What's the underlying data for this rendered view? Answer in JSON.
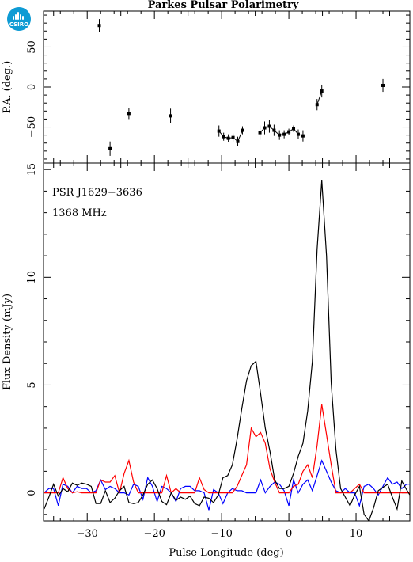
{
  "logo": {
    "text": "CSIRO"
  },
  "chart_data": [
    {
      "type": "scatter",
      "title": "Parkes Pulsar Polarimetry",
      "xlabel": "",
      "ylabel": "P.A. (deg.)",
      "xlim": [
        -36.5,
        18.0
      ],
      "ylim": [
        -95,
        95
      ],
      "yticks": [
        -50,
        0,
        50
      ],
      "points": [
        {
          "x": -28.2,
          "y": 77,
          "err": 8
        },
        {
          "x": -26.6,
          "y": -77,
          "err": 9
        },
        {
          "x": -23.8,
          "y": -33,
          "err": 7
        },
        {
          "x": -17.6,
          "y": -36,
          "err": 9
        },
        {
          "x": -10.4,
          "y": -55,
          "err": 7
        },
        {
          "x": -9.7,
          "y": -62,
          "err": 5
        },
        {
          "x": -9.0,
          "y": -64,
          "err": 5
        },
        {
          "x": -8.3,
          "y": -63,
          "err": 5
        },
        {
          "x": -7.6,
          "y": -68,
          "err": 6
        },
        {
          "x": -6.9,
          "y": -54,
          "err": 5
        },
        {
          "x": -4.3,
          "y": -57,
          "err": 9
        },
        {
          "x": -3.6,
          "y": -51,
          "err": 8
        },
        {
          "x": -2.9,
          "y": -49,
          "err": 8
        },
        {
          "x": -2.2,
          "y": -54,
          "err": 7
        },
        {
          "x": -1.4,
          "y": -60,
          "err": 6
        },
        {
          "x": -0.7,
          "y": -59,
          "err": 5
        },
        {
          "x": 0.0,
          "y": -56,
          "err": 4
        },
        {
          "x": 0.7,
          "y": -52,
          "err": 4
        },
        {
          "x": 1.4,
          "y": -59,
          "err": 6
        },
        {
          "x": 2.1,
          "y": -61,
          "err": 7
        },
        {
          "x": 4.2,
          "y": -22,
          "err": 7
        },
        {
          "x": 4.9,
          "y": -5,
          "err": 8
        },
        {
          "x": 14.0,
          "y": 2,
          "err": 8
        }
      ],
      "connected_groups": [
        [
          4,
          9
        ],
        [
          10,
          19
        ],
        [
          20,
          21
        ]
      ]
    },
    {
      "type": "line",
      "xlabel": "Pulse Longitude (deg)",
      "ylabel": "Flux Density (mJy)",
      "xlim": [
        -36.5,
        18.0
      ],
      "ylim": [
        -1.3,
        15.3
      ],
      "xticks": [
        -30,
        -20,
        -10,
        0,
        10
      ],
      "yticks": [
        0,
        5,
        10,
        15
      ],
      "annotations": [
        "PSR J1629−3636",
        "1368 MHz"
      ],
      "x_start": -36.4,
      "x_step": 0.7,
      "series": [
        {
          "color": "#000000",
          "values": [
            -0.75,
            -0.2,
            0.4,
            -0.15,
            0.2,
            0.05,
            0.45,
            0.35,
            0.45,
            0.4,
            0.3,
            -0.5,
            -0.5,
            0.1,
            -0.45,
            -0.25,
            0.1,
            0.3,
            -0.45,
            -0.5,
            -0.45,
            -0.1,
            0.4,
            0.6,
            0.2,
            -0.4,
            -0.55,
            0.0,
            -0.35,
            -0.2,
            -0.3,
            -0.15,
            -0.5,
            -0.6,
            -0.2,
            -0.25,
            -0.45,
            -0.1,
            0.7,
            0.8,
            1.3,
            2.5,
            3.9,
            5.2,
            5.9,
            6.1,
            4.6,
            3.0,
            1.9,
            0.6,
            0.2,
            0.2,
            0.3,
            0.9,
            1.7,
            2.3,
            3.8,
            6.1,
            11.3,
            14.5,
            11.0,
            5.1,
            2.0,
            0.2,
            -0.2,
            -0.6,
            -0.1,
            0.3,
            -1.0,
            -1.3,
            -0.7,
            0.1,
            0.25,
            0.4,
            -0.2,
            -0.75,
            0.55,
            0.15,
            -0.2,
            -0.15,
            0.0,
            -0.5
          ]
        },
        {
          "color": "#ff0000",
          "values": [
            0.0,
            0.0,
            0.0,
            0.0,
            0.7,
            0.2,
            0.0,
            0.05,
            0.0,
            0.0,
            0.0,
            0.0,
            0.6,
            0.5,
            0.5,
            0.8,
            0.0,
            0.9,
            1.5,
            0.5,
            0.0,
            0.0,
            0.0,
            0.0,
            0.0,
            0.0,
            0.8,
            0.0,
            0.2,
            0.0,
            0.0,
            0.0,
            0.0,
            0.7,
            0.15,
            0.0,
            0.0,
            0.0,
            0.0,
            0.0,
            0.0,
            0.3,
            0.8,
            1.3,
            3.0,
            2.6,
            2.8,
            2.3,
            1.1,
            0.5,
            0.0,
            0.0,
            0.0,
            0.3,
            0.4,
            1.0,
            1.3,
            0.7,
            2.2,
            4.1,
            2.7,
            1.3,
            0.0,
            0.0,
            0.0,
            0.0,
            0.2,
            0.4,
            0.0,
            0.0,
            0.0,
            0.0,
            0.0,
            0.0,
            0.0,
            0.0,
            0.0,
            0.0,
            0.0,
            0.0,
            0.0,
            0.0
          ]
        },
        {
          "color": "#0000ff",
          "values": [
            0.0,
            0.2,
            0.2,
            -0.6,
            0.4,
            0.3,
            0.0,
            0.3,
            0.2,
            0.2,
            0.0,
            0.1,
            0.6,
            0.15,
            0.3,
            0.2,
            0.0,
            0.0,
            -0.1,
            0.4,
            0.3,
            -0.3,
            0.7,
            0.3,
            -0.4,
            0.3,
            0.2,
            0.0,
            -0.4,
            0.2,
            0.3,
            0.3,
            0.1,
            0.1,
            0.0,
            -0.8,
            0.15,
            0.0,
            -0.5,
            0.0,
            0.2,
            0.1,
            0.1,
            0.0,
            0.0,
            0.0,
            0.6,
            0.0,
            0.3,
            0.5,
            0.4,
            0.1,
            -0.6,
            0.6,
            0.0,
            0.4,
            0.6,
            0.1,
            0.8,
            1.5,
            1.0,
            0.5,
            0.1,
            0.0,
            0.2,
            0.0,
            0.0,
            -0.6,
            0.3,
            0.4,
            0.2,
            -0.1,
            0.3,
            0.7,
            0.4,
            0.5,
            0.2,
            0.4,
            0.4,
            0.2,
            0.6,
            0.5
          ]
        }
      ]
    }
  ]
}
